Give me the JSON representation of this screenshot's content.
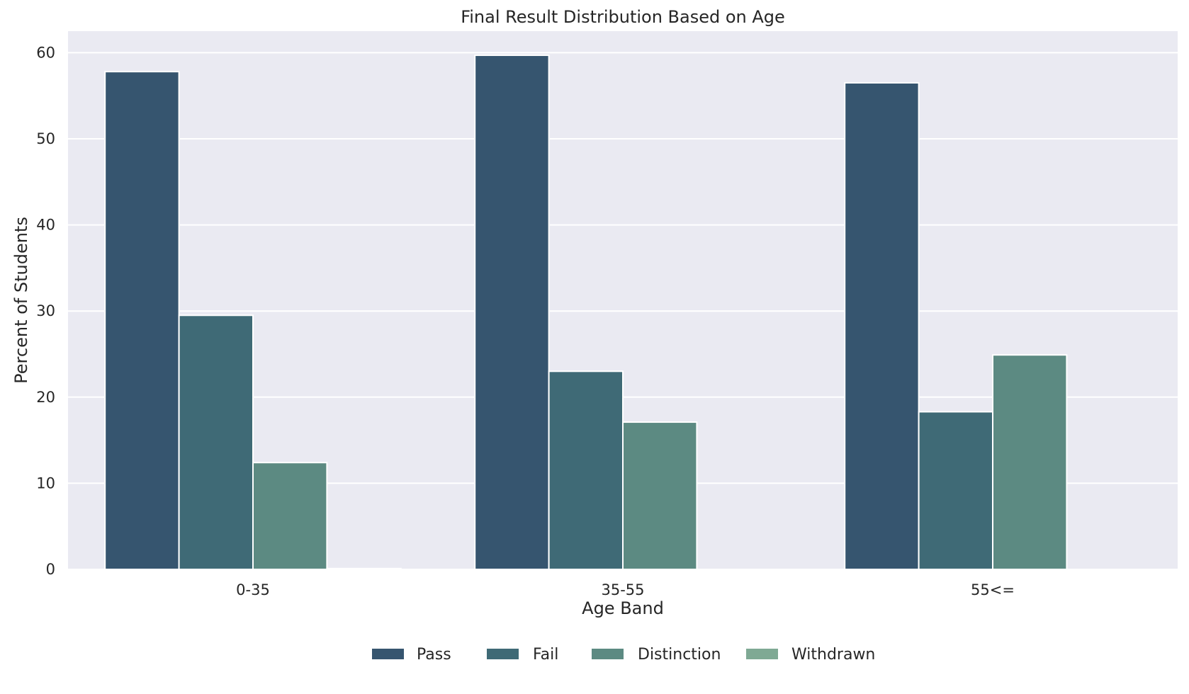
{
  "chart_data": {
    "type": "bar",
    "title": "Final Result Distribution Based on Age",
    "xlabel": "Age Band",
    "ylabel": "Percent of Students",
    "categories": [
      "0-35",
      "35-55",
      "55<="
    ],
    "series": [
      {
        "name": "Pass",
        "color": "#36556f",
        "values": [
          57.8,
          59.7,
          56.5
        ]
      },
      {
        "name": "Fail",
        "color": "#3f6a76",
        "values": [
          29.5,
          23.0,
          18.3
        ]
      },
      {
        "name": "Distinction",
        "color": "#5c8a82",
        "values": [
          12.4,
          17.1,
          24.9
        ]
      },
      {
        "name": "Withdrawn",
        "color": "#7fa994",
        "values": [
          0.1,
          0.0,
          0.0
        ]
      }
    ],
    "ylim": [
      0,
      62.5
    ],
    "yticks": [
      0,
      10,
      20,
      30,
      40,
      50,
      60
    ],
    "grid": true,
    "legend_position": "bottom-center",
    "background_color": "#eaeaf2"
  }
}
